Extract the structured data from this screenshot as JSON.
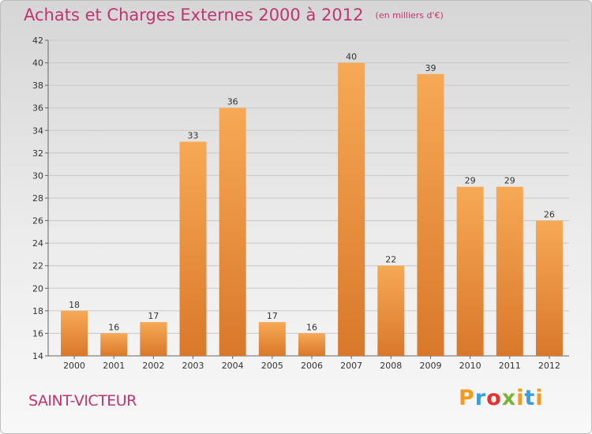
{
  "header": {
    "title": "Achats et Charges Externes 2000 à 2012",
    "subtitle": "(en milliers d'€)"
  },
  "footer": {
    "place": "SAINT-VICTEUR",
    "logo": "Proxiti"
  },
  "colors": {
    "accent": "#c0356e",
    "bar_top": "#f7a955",
    "bar_bottom": "#d9782a"
  },
  "chart_data": {
    "type": "bar",
    "categories": [
      "2000",
      "2001",
      "2002",
      "2003",
      "2004",
      "2005",
      "2006",
      "2007",
      "2008",
      "2009",
      "2010",
      "2011",
      "2012"
    ],
    "values": [
      18,
      16,
      17,
      33,
      36,
      17,
      16,
      40,
      22,
      39,
      29,
      29,
      26
    ],
    "ylim": [
      14,
      42
    ],
    "yticks": [
      14,
      16,
      18,
      20,
      22,
      24,
      26,
      28,
      30,
      32,
      34,
      36,
      38,
      40,
      42
    ],
    "grid": true,
    "legend": "none"
  }
}
